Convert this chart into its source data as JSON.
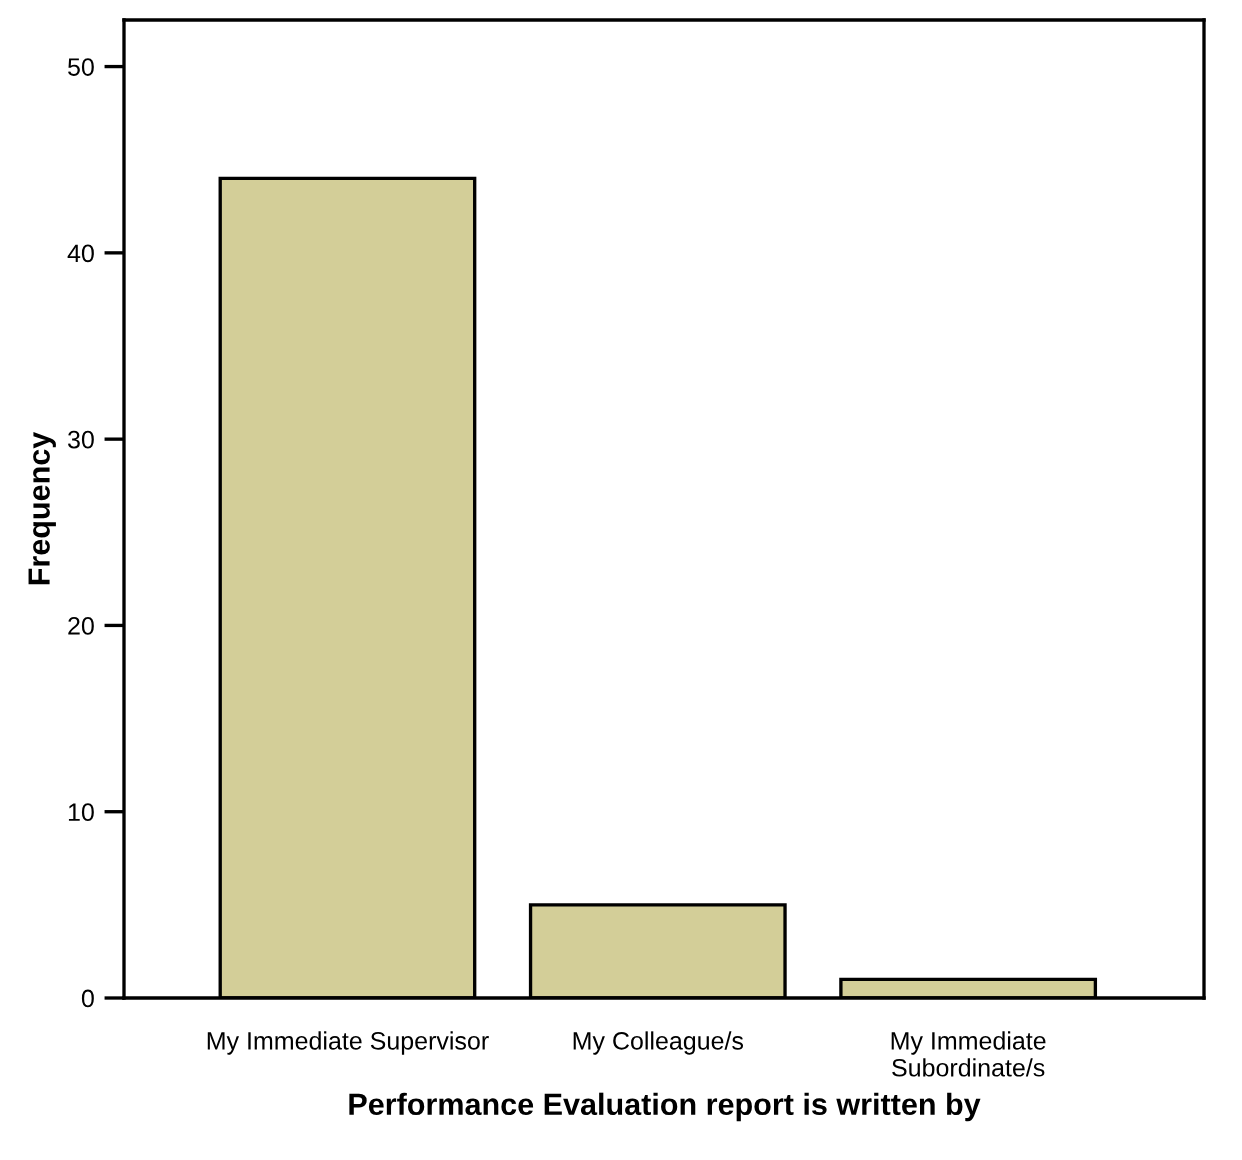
{
  "chart_data": {
    "type": "bar",
    "xlabel": "Performance Evaluation report is written by",
    "ylabel": "Frequency",
    "categories": [
      "My Immediate Supervisor",
      "My Colleague/s",
      "My Immediate\nSubordinate/s"
    ],
    "values": [
      44,
      5,
      1
    ],
    "color": "#d3ce98",
    "ylim": [
      0,
      52.5
    ],
    "yticks": [
      0,
      10,
      20,
      30,
      40,
      50
    ],
    "grid": false,
    "legend": false
  }
}
